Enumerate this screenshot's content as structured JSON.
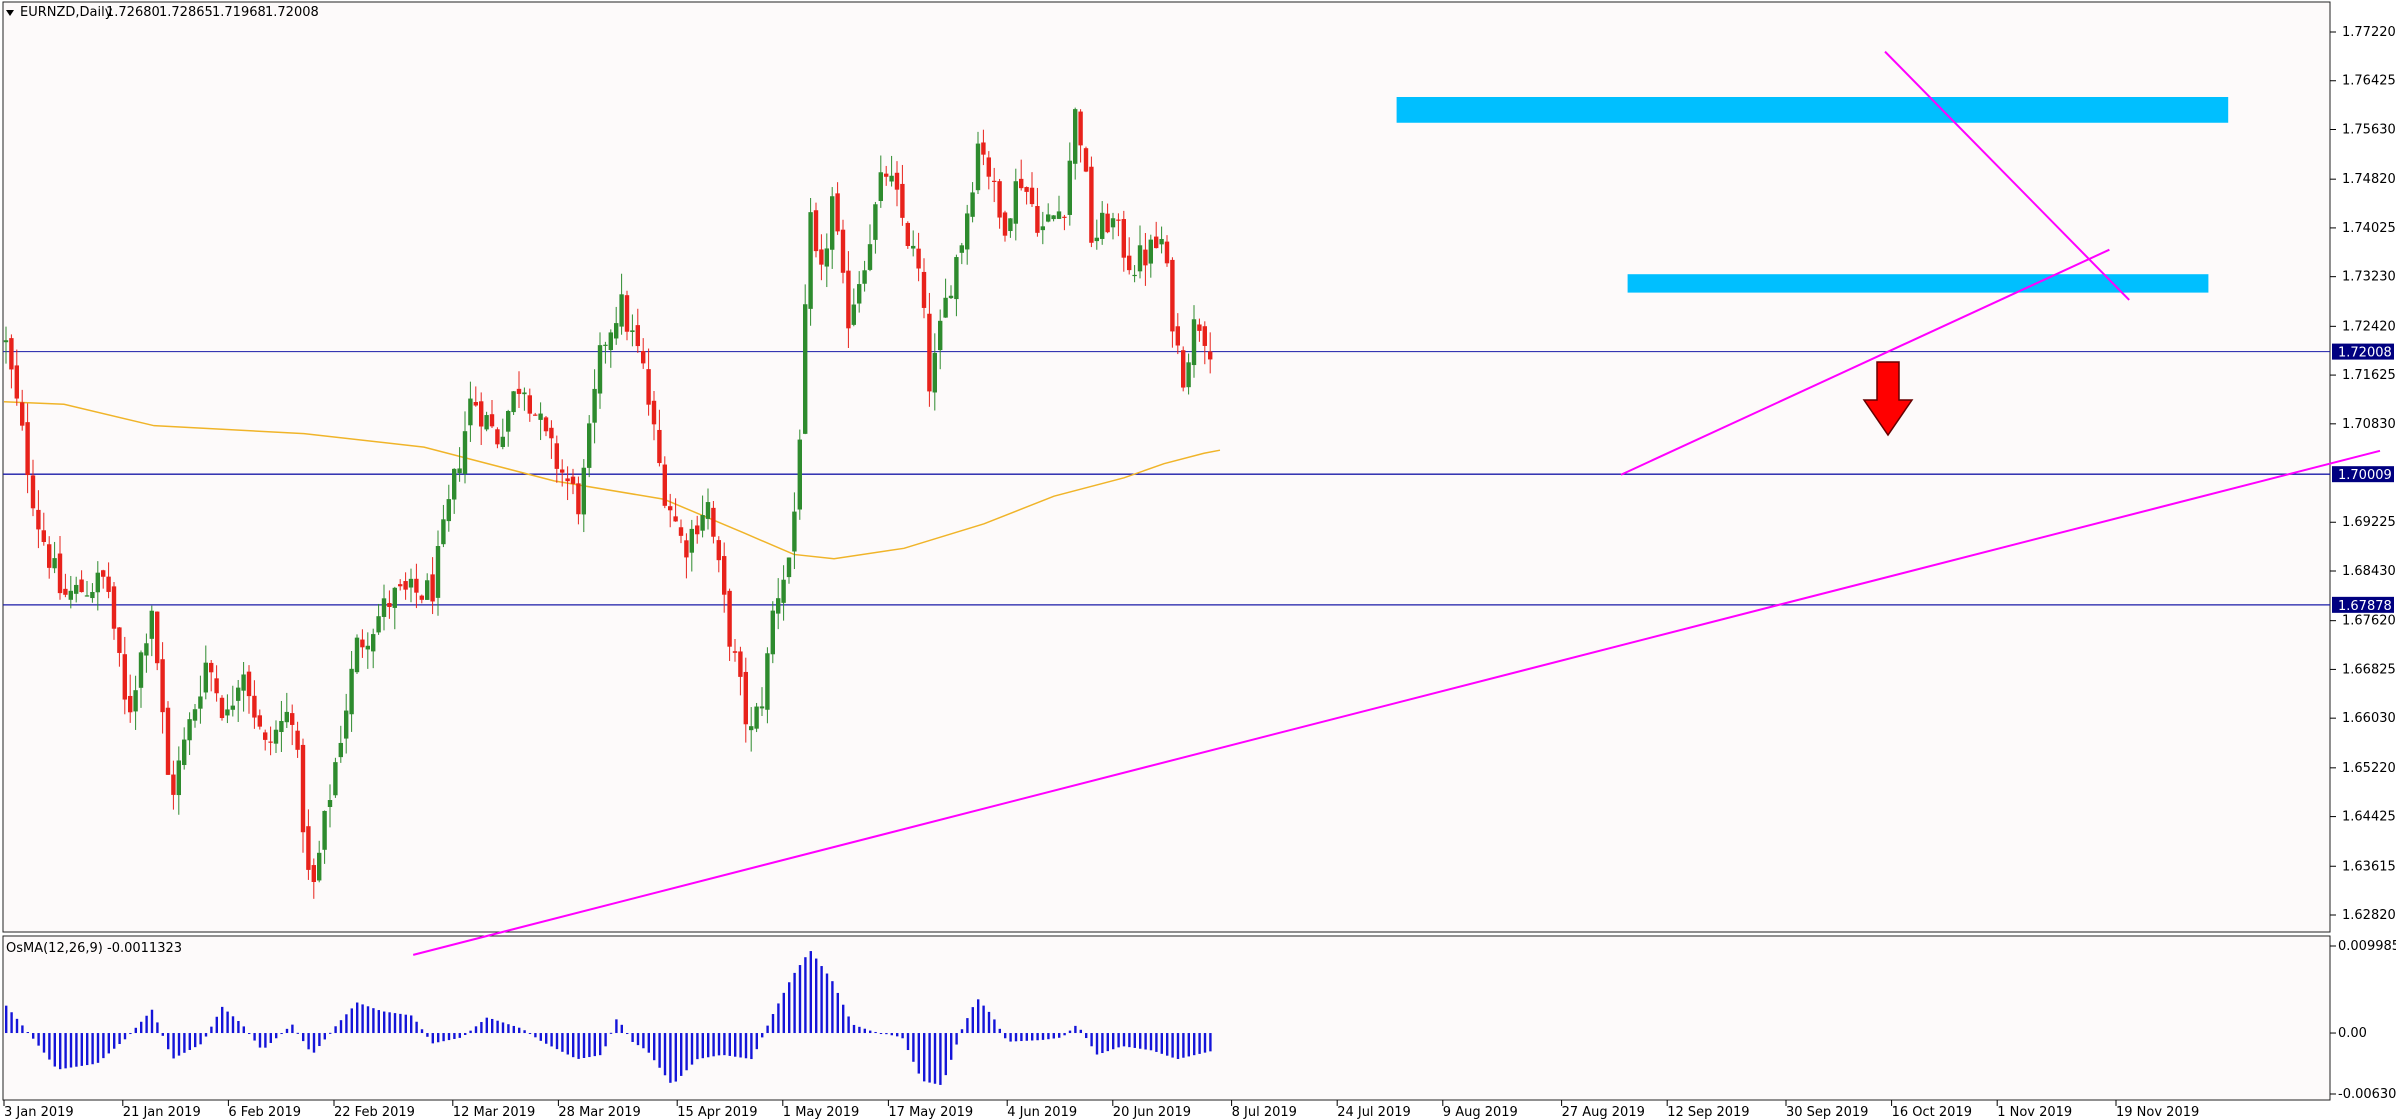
{
  "chart_data": [
    {
      "type": "candlestick",
      "title": "EURNZD,Daily",
      "ohlc_readout": [
        "1.72680",
        "1.72865",
        "1.71968",
        "1.72008"
      ],
      "y_ticks": [
        "1.77220",
        "1.76425",
        "1.75630",
        "1.74820",
        "1.74025",
        "1.73230",
        "1.72420",
        "1.71625",
        "1.70830",
        "1.70009",
        "1.69225",
        "1.68430",
        "1.67620",
        "1.66825",
        "1.66030",
        "1.65220",
        "1.64425",
        "1.63615",
        "1.62820"
      ],
      "x_ticks": [
        "3 Jan 2019",
        "21 Jan 2019",
        "6 Feb 2019",
        "22 Feb 2019",
        "12 Mar 2019",
        "28 Mar 2019",
        "15 Apr 2019",
        "1 May 2019",
        "17 May 2019",
        "4 Jun 2019",
        "20 Jun 2019",
        "8 Jul 2019",
        "24 Jul 2019",
        "9 Aug 2019",
        "27 Aug 2019",
        "12 Sep 2019",
        "30 Sep 2019",
        "16 Oct 2019",
        "1 Nov 2019",
        "19 Nov 2019"
      ],
      "ylim": [
        1.622,
        1.778
      ],
      "current_price": {
        "value": 1.72008,
        "label": "1.72008"
      },
      "horizontal_levels": [
        {
          "value": 1.70009,
          "label": "1.70009"
        },
        {
          "value": 1.67878,
          "label": "1.67878"
        }
      ],
      "zones": [
        {
          "name": "resistance",
          "x_from": "2 Aug 2019",
          "x_to": "6 Dec 2019",
          "y_from": 1.7574,
          "y_to": 1.7616
        },
        {
          "name": "support",
          "x_from": "6 Sep 2019",
          "x_to": "3 Dec 2019",
          "y_from": 1.7297,
          "y_to": 1.7327
        }
      ],
      "trendlines": [
        {
          "name": "long-term-support",
          "from": [
            "6 Mar 2019",
            1.6217
          ],
          "to": [
            "29 Dec 2019",
            1.7039
          ]
        },
        {
          "name": "rising-support",
          "from": [
            "5 Sep 2019",
            1.7
          ],
          "to": [
            "18 Nov 2019",
            1.7367
          ]
        },
        {
          "name": "descending-resistance",
          "from": [
            "15 Oct 2019",
            1.769
          ],
          "to": [
            "21 Nov 2019",
            1.7285
          ]
        }
      ],
      "moving_average_points": [
        [
          0,
          1.7119
        ],
        [
          60,
          1.7115
        ],
        [
          150,
          1.708
        ],
        [
          300,
          1.7067
        ],
        [
          420,
          1.7045
        ],
        [
          550,
          1.699
        ],
        [
          660,
          1.696
        ],
        [
          740,
          1.6905
        ],
        [
          790,
          1.687
        ],
        [
          830,
          1.6863
        ],
        [
          900,
          1.688
        ],
        [
          980,
          1.692
        ],
        [
          1050,
          1.6965
        ],
        [
          1120,
          1.6995
        ],
        [
          1160,
          1.7018
        ],
        [
          1200,
          1.7035
        ],
        [
          1216,
          1.704
        ]
      ],
      "price_path": [
        [
          3,
          1.722
        ],
        [
          35,
          1.693
        ],
        [
          60,
          1.68
        ],
        [
          105,
          1.683
        ],
        [
          125,
          1.66
        ],
        [
          150,
          1.679
        ],
        [
          168,
          1.647
        ],
        [
          205,
          1.67
        ],
        [
          225,
          1.66
        ],
        [
          240,
          1.67
        ],
        [
          262,
          1.655
        ],
        [
          290,
          1.662
        ],
        [
          309,
          1.63
        ],
        [
          330,
          1.65
        ],
        [
          355,
          1.672
        ],
        [
          390,
          1.68
        ],
        [
          430,
          1.681
        ],
        [
          470,
          1.713
        ],
        [
          495,
          1.706
        ],
        [
          520,
          1.716
        ],
        [
          545,
          1.705
        ],
        [
          578,
          1.695
        ],
        [
          600,
          1.721
        ],
        [
          618,
          1.728
        ],
        [
          640,
          1.718
        ],
        [
          660,
          1.699
        ],
        [
          682,
          1.688
        ],
        [
          705,
          1.696
        ],
        [
          725,
          1.676
        ],
        [
          748,
          1.657
        ],
        [
          762,
          1.665
        ],
        [
          772,
          1.679
        ],
        [
          790,
          1.688
        ],
        [
          798,
          1.708
        ],
        [
          808,
          1.741
        ],
        [
          818,
          1.73
        ],
        [
          830,
          1.745
        ],
        [
          845,
          1.725
        ],
        [
          865,
          1.737
        ],
        [
          883,
          1.75
        ],
        [
          898,
          1.743
        ],
        [
          918,
          1.732
        ],
        [
          928,
          1.714
        ],
        [
          946,
          1.73
        ],
        [
          962,
          1.74
        ],
        [
          978,
          1.756
        ],
        [
          1000,
          1.74
        ],
        [
          1018,
          1.749
        ],
        [
          1040,
          1.74
        ],
        [
          1062,
          1.744
        ],
        [
          1075,
          1.761
        ],
        [
          1090,
          1.738
        ],
        [
          1108,
          1.742
        ],
        [
          1130,
          1.734
        ],
        [
          1160,
          1.738
        ],
        [
          1172,
          1.724
        ],
        [
          1180,
          1.716
        ],
        [
          1195,
          1.726
        ],
        [
          1212,
          1.7201
        ]
      ],
      "annotations": [
        {
          "name": "bearish-arrow",
          "color": "#ff0000"
        }
      ],
      "colors": {
        "bull": "#2e8b2e",
        "bear": "#e8221b",
        "zone": "#00bfff",
        "trendline": "#ff00ff",
        "ma": "#f0b429",
        "level": "#1a1aa8",
        "osma": "#1414d9",
        "background": "#fdfafa",
        "price_label_bg": "#000080"
      }
    },
    {
      "type": "histogram",
      "title": "OsMA(12,26,9) -0.0011323",
      "y_ticks": [
        "0.0099858",
        "0.00",
        "-0.0063072"
      ],
      "ylim": [
        -0.0063072,
        0.0099858
      ],
      "values_shape": [
        [
          0,
          0.0037
        ],
        [
          30,
          -0.0005
        ],
        [
          55,
          -0.0042
        ],
        [
          95,
          -0.0035
        ],
        [
          125,
          -0.0005
        ],
        [
          150,
          0.0027
        ],
        [
          170,
          -0.003
        ],
        [
          200,
          -0.0012
        ],
        [
          220,
          0.003
        ],
        [
          240,
          0.001
        ],
        [
          260,
          -0.002
        ],
        [
          290,
          0.001
        ],
        [
          310,
          -0.0025
        ],
        [
          335,
          0.001
        ],
        [
          355,
          0.0035
        ],
        [
          380,
          0.0025
        ],
        [
          410,
          0.002
        ],
        [
          430,
          -0.0012
        ],
        [
          460,
          -0.0005
        ],
        [
          485,
          0.0018
        ],
        [
          520,
          0.0005
        ],
        [
          540,
          -0.001
        ],
        [
          575,
          -0.003
        ],
        [
          600,
          -0.0025
        ],
        [
          615,
          0.0018
        ],
        [
          630,
          -0.001
        ],
        [
          645,
          -0.002
        ],
        [
          670,
          -0.006
        ],
        [
          695,
          -0.003
        ],
        [
          720,
          -0.0025
        ],
        [
          750,
          -0.003
        ],
        [
          770,
          0.002
        ],
        [
          790,
          0.0065
        ],
        [
          808,
          0.0095
        ],
        [
          830,
          0.006
        ],
        [
          850,
          0.001
        ],
        [
          870,
          0.0002
        ],
        [
          900,
          -0.0005
        ],
        [
          920,
          -0.0055
        ],
        [
          940,
          -0.006
        ],
        [
          960,
          0.0005
        ],
        [
          975,
          0.004
        ],
        [
          990,
          0.002
        ],
        [
          1005,
          -0.001
        ],
        [
          1040,
          -0.0008
        ],
        [
          1060,
          -0.0005
        ],
        [
          1075,
          0.001
        ],
        [
          1095,
          -0.0025
        ],
        [
          1120,
          -0.0015
        ],
        [
          1150,
          -0.002
        ],
        [
          1175,
          -0.003
        ],
        [
          1212,
          -0.002
        ]
      ]
    }
  ]
}
